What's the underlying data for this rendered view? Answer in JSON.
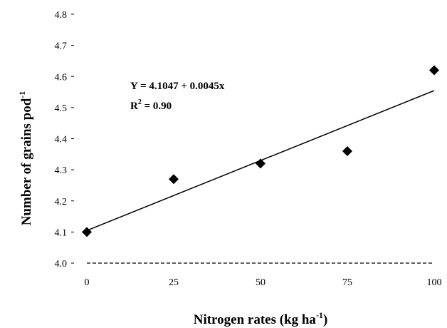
{
  "chart_data": {
    "type": "scatter",
    "x": [
      0,
      25,
      50,
      75,
      100
    ],
    "y": [
      4.1,
      4.27,
      4.32,
      4.36,
      4.62
    ],
    "xticks": [
      "0",
      "25",
      "50",
      "75",
      "100"
    ],
    "yticks": [
      "4.0",
      "4.1",
      "4.2",
      "4.3",
      "4.4",
      "4.5",
      "4.6",
      "4.7",
      "4.8"
    ],
    "xlim": [
      0,
      100
    ],
    "ylim": [
      4.0,
      4.8
    ],
    "xlabel": "Nitrogen rates (kg ha",
    "xlabel_sup": "-1",
    "xlabel_end": ")",
    "ylabel": "Number of grains pod",
    "ylabel_sup": "-1",
    "trendline": {
      "intercept": 4.1047,
      "slope": 0.0045,
      "equation": "Y = 4.1047 + 0.0045x",
      "r2_label": "R",
      "r2_sup": "2",
      "r2_value": " = 0.90"
    },
    "marker": "diamond",
    "grid": false,
    "legend": "none"
  }
}
